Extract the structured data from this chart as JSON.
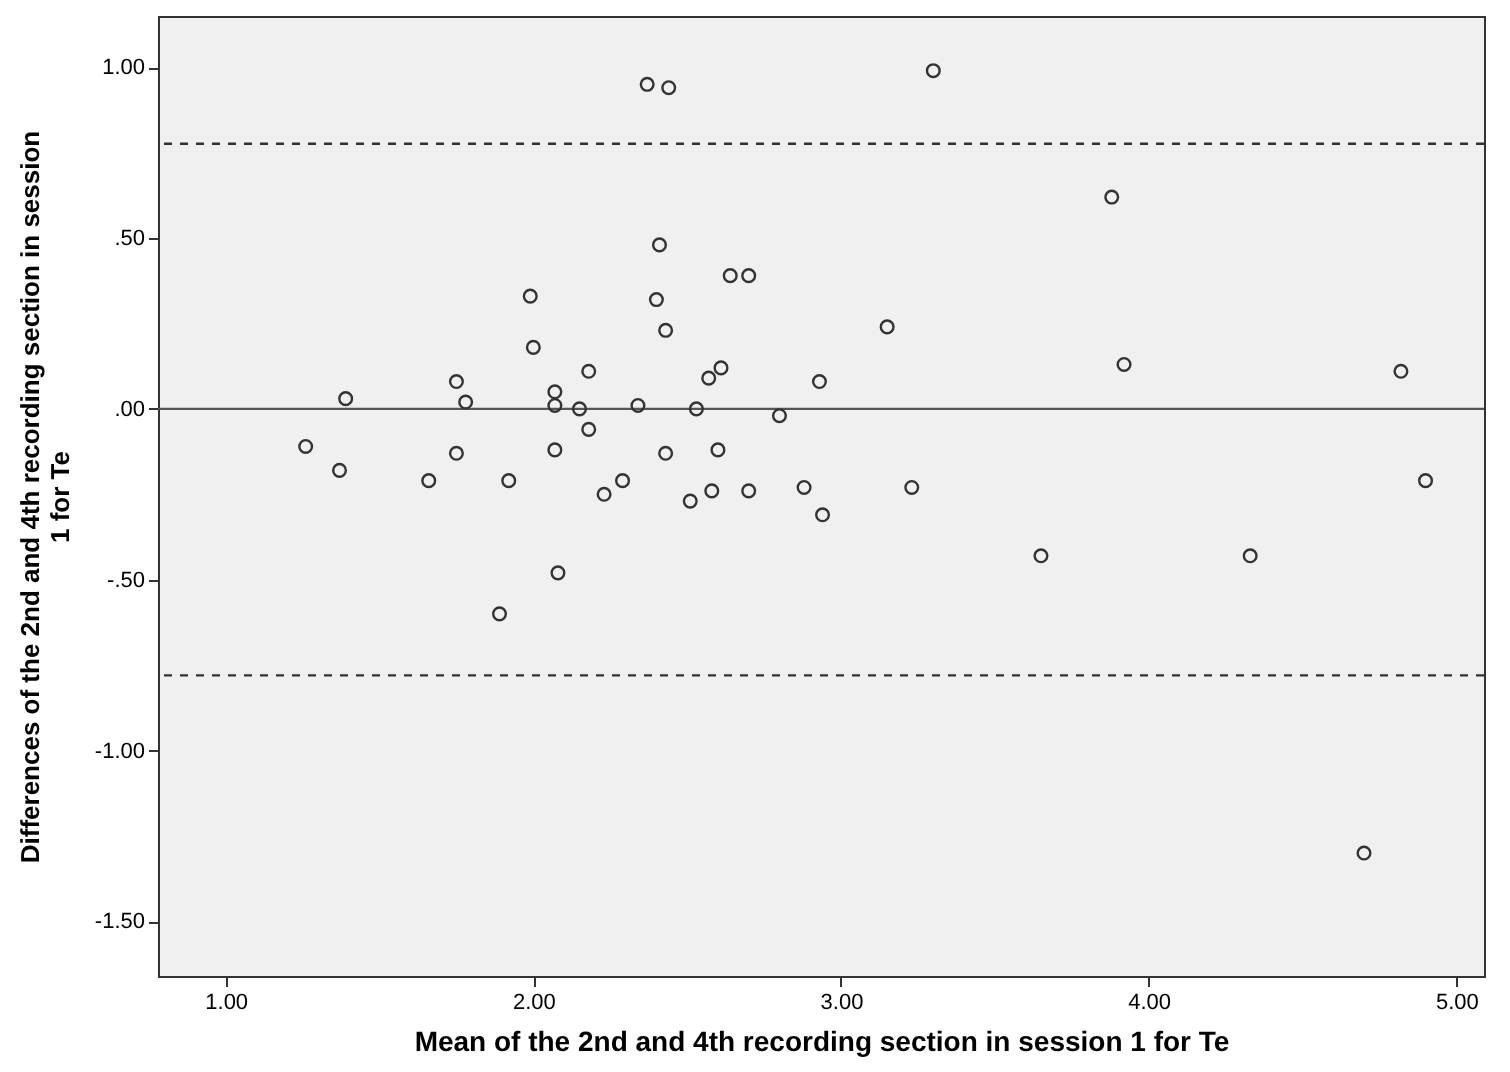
{
  "chart_data": {
    "type": "scatter",
    "xlabel": "Mean of the 2nd and 4th recording section in session 1 for Te",
    "ylabel": "Differences of the 2nd and 4th recording section in session 1 for Te",
    "x": [
      2.37,
      2.44,
      2.41,
      2.64,
      2.7,
      1.99,
      2.4,
      2.43,
      2.0,
      2.18,
      2.61,
      2.57,
      1.75,
      2.93,
      1.39,
      2.07,
      1.78,
      2.07,
      2.15,
      2.34,
      2.53,
      2.8,
      2.18,
      1.26,
      2.07,
      2.43,
      2.6,
      1.75,
      1.37,
      1.66,
      1.92,
      2.29,
      2.23,
      2.51,
      2.58,
      2.7,
      2.88,
      2.94,
      2.08,
      1.89,
      3.3,
      3.88,
      3.15,
      3.92,
      4.82,
      3.23,
      4.9,
      3.65,
      4.33,
      4.7
    ],
    "series": [
      {
        "color": "#333333",
        "values": [
          0.95,
          0.94,
          0.48,
          0.39,
          0.39,
          0.33,
          0.32,
          0.23,
          0.18,
          0.11,
          0.12,
          0.09,
          0.08,
          0.08,
          0.03,
          0.05,
          0.02,
          0.01,
          0.0,
          0.01,
          0.0,
          -0.02,
          -0.06,
          -0.11,
          -0.12,
          -0.13,
          -0.12,
          -0.13,
          -0.18,
          -0.21,
          -0.21,
          -0.21,
          -0.25,
          -0.27,
          -0.24,
          -0.24,
          -0.23,
          -0.31,
          -0.48,
          -0.6,
          0.99,
          0.62,
          0.24,
          0.13,
          0.11,
          -0.23,
          -0.21,
          -0.43,
          -0.43,
          -1.3
        ]
      }
    ],
    "marker": "circle",
    "grid": false,
    "xlim": [
      0.78,
      5.09
    ],
    "ylim": [
      -1.66,
      1.15
    ],
    "xticks": [
      {
        "value": 1,
        "label": "1.00"
      },
      {
        "value": 2,
        "label": "2.00"
      },
      {
        "value": 3,
        "label": "3.00"
      },
      {
        "value": 4,
        "label": "4.00"
      },
      {
        "value": 5,
        "label": "5.00"
      }
    ],
    "yticks": [
      {
        "value": -1.5,
        "label": "-1.50"
      },
      {
        "value": -1,
        "label": "-1.00"
      },
      {
        "value": -0.5,
        "label": "-.50"
      },
      {
        "value": 0,
        "label": ".00"
      },
      {
        "value": 0.5,
        "label": ".50"
      },
      {
        "value": 1,
        "label": "1.00"
      }
    ],
    "ref_lines": [
      {
        "axis": "y",
        "value": 0.776,
        "line_style": "dashed",
        "color": "#333333"
      },
      {
        "axis": "y",
        "value": 0,
        "line_style": "solid",
        "color": "#555555"
      },
      {
        "axis": "y",
        "value": -0.78,
        "line_style": "dashed",
        "color": "#333333"
      }
    ]
  }
}
